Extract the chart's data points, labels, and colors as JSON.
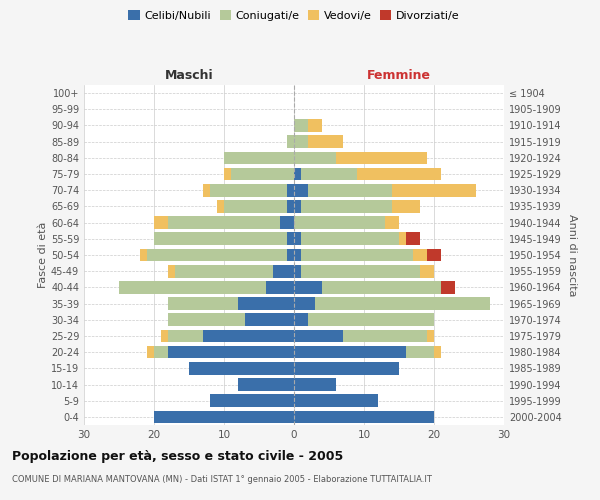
{
  "age_groups": [
    "0-4",
    "5-9",
    "10-14",
    "15-19",
    "20-24",
    "25-29",
    "30-34",
    "35-39",
    "40-44",
    "45-49",
    "50-54",
    "55-59",
    "60-64",
    "65-69",
    "70-74",
    "75-79",
    "80-84",
    "85-89",
    "90-94",
    "95-99",
    "100+"
  ],
  "birth_years": [
    "2000-2004",
    "1995-1999",
    "1990-1994",
    "1985-1989",
    "1980-1984",
    "1975-1979",
    "1970-1974",
    "1965-1969",
    "1960-1964",
    "1955-1959",
    "1950-1954",
    "1945-1949",
    "1940-1944",
    "1935-1939",
    "1930-1934",
    "1925-1929",
    "1920-1924",
    "1915-1919",
    "1910-1914",
    "1905-1909",
    "≤ 1904"
  ],
  "male": {
    "celibi": [
      20,
      12,
      8,
      15,
      18,
      13,
      7,
      8,
      4,
      3,
      1,
      1,
      2,
      1,
      1,
      0,
      0,
      0,
      0,
      0,
      0
    ],
    "coniugati": [
      0,
      0,
      0,
      0,
      2,
      5,
      11,
      10,
      21,
      14,
      20,
      19,
      16,
      9,
      11,
      9,
      10,
      1,
      0,
      0,
      0
    ],
    "vedovi": [
      0,
      0,
      0,
      0,
      1,
      1,
      0,
      0,
      0,
      1,
      1,
      0,
      2,
      1,
      1,
      1,
      0,
      0,
      0,
      0,
      0
    ],
    "divorziati": [
      0,
      0,
      0,
      0,
      0,
      0,
      0,
      0,
      0,
      0,
      0,
      0,
      0,
      0,
      0,
      0,
      0,
      0,
      0,
      0,
      0
    ]
  },
  "female": {
    "nubili": [
      20,
      12,
      6,
      15,
      16,
      7,
      2,
      3,
      4,
      1,
      1,
      1,
      0,
      1,
      2,
      1,
      0,
      0,
      0,
      0,
      0
    ],
    "coniugate": [
      0,
      0,
      0,
      0,
      4,
      12,
      18,
      25,
      17,
      17,
      16,
      14,
      13,
      13,
      12,
      8,
      6,
      2,
      2,
      0,
      0
    ],
    "vedove": [
      0,
      0,
      0,
      0,
      1,
      1,
      0,
      0,
      0,
      2,
      2,
      1,
      2,
      4,
      12,
      12,
      13,
      5,
      2,
      0,
      0
    ],
    "divorziate": [
      0,
      0,
      0,
      0,
      0,
      0,
      0,
      0,
      2,
      0,
      2,
      2,
      0,
      0,
      0,
      0,
      0,
      0,
      0,
      0,
      0
    ]
  },
  "colors": {
    "celibi": "#3a6faa",
    "coniugati": "#b5c99a",
    "vedovi": "#f0c060",
    "divorziati": "#c0392b"
  },
  "xlim": 30,
  "title": "Popolazione per età, sesso e stato civile - 2005",
  "subtitle": "COMUNE DI MARIANA MANTOVANA (MN) - Dati ISTAT 1° gennaio 2005 - Elaborazione TUTTAITALIA.IT",
  "ylabel_left": "Fasce di età",
  "ylabel_right": "Anni di nascita",
  "legend_labels": [
    "Celibi/Nubili",
    "Coniugati/e",
    "Vedovi/e",
    "Divorziati/e"
  ],
  "background_color": "#f5f5f5",
  "plot_bg_color": "#ffffff",
  "maschi_color": "#333333",
  "femmine_color": "#cc3333"
}
